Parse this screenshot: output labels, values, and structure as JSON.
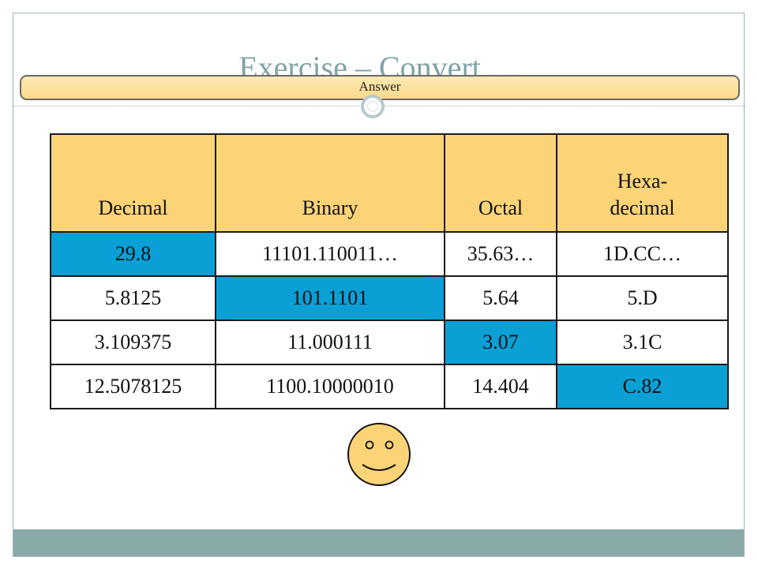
{
  "slide": {
    "title": "Exercise – Convert …",
    "answer_label": "Answer"
  },
  "table": {
    "headers": [
      "Decimal",
      "Binary",
      "Octal",
      "Hexa-\ndecimal"
    ],
    "rows": [
      {
        "cells": [
          "29.8",
          "11101.110011…",
          "35.63…",
          "1D.CC…"
        ],
        "highlight": 0
      },
      {
        "cells": [
          "5.8125",
          "101.1101",
          "5.64",
          "5.D"
        ],
        "highlight": 1
      },
      {
        "cells": [
          "3.109375",
          "11.000111",
          "3.07",
          "3.1C"
        ],
        "highlight": 2
      },
      {
        "cells": [
          "12.5078125",
          "1100.10000010",
          "14.404",
          "C.82"
        ],
        "highlight": 3
      }
    ]
  },
  "colors": {
    "header_bg": "#fcd478",
    "highlight_bg": "#0aa0d6",
    "title_color": "#7fa3a8",
    "footer_bg": "#8aaaaa",
    "smiley_fill": "#fcd478"
  },
  "decorations": {
    "smiley": "smiley-face-icon",
    "ring": "ring-ornament-icon"
  }
}
